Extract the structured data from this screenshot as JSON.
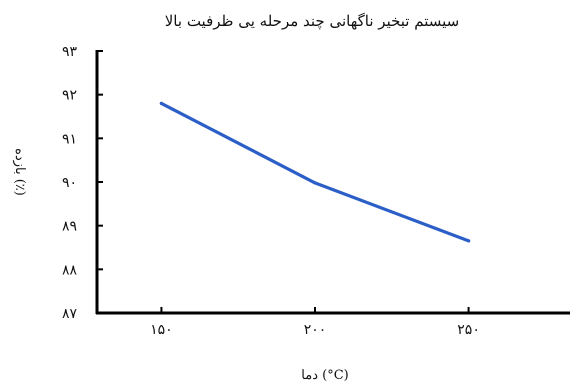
{
  "chart_data": {
    "type": "line",
    "title": "سیستم تبخیر ناگهانی چند مرحله یی ظرفیت بالا",
    "xlabel": "دما (°C)",
    "ylabel": "بازده (٪)",
    "categories": [
      "۱۵۰",
      "۲۰۰",
      "۲۵۰"
    ],
    "x_values": [
      150,
      200,
      250
    ],
    "series": [
      {
        "values": [
          91.8,
          89.98,
          88.65
        ]
      }
    ],
    "y_ticks": [
      {
        "value": 87,
        "label": "۸۷"
      },
      {
        "value": 88,
        "label": "۸۸"
      },
      {
        "value": 89,
        "label": "۸۹"
      },
      {
        "value": 90,
        "label": "۹۰"
      },
      {
        "value": 91,
        "label": "۹۱"
      },
      {
        "value": 92,
        "label": "۹۲"
      },
      {
        "value": 93,
        "label": "۹۳"
      }
    ],
    "ylim": [
      87,
      93
    ],
    "grid": false,
    "line_color": "#2b5fc7",
    "axis_color": "#000000"
  }
}
